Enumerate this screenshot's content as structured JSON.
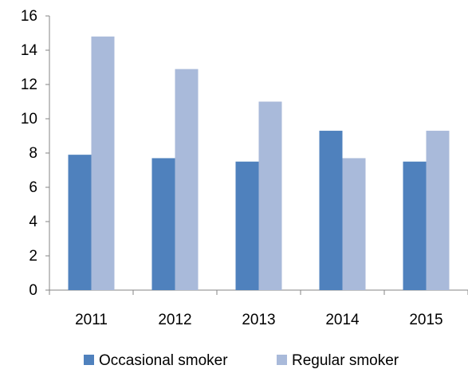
{
  "chart_data": {
    "type": "bar",
    "title": "",
    "xlabel": "",
    "ylabel": "",
    "categories": [
      "2011",
      "2012",
      "2013",
      "2014",
      "2015"
    ],
    "series": [
      {
        "name": "Occasional smoker",
        "color": "#4F81BD",
        "values": [
          7.9,
          7.7,
          7.5,
          9.3,
          7.5
        ]
      },
      {
        "name": "Regular smoker",
        "color": "#A9BADA",
        "values": [
          14.8,
          12.9,
          11.0,
          7.7,
          9.3
        ]
      }
    ],
    "ylim": [
      0,
      16
    ],
    "yticks": [
      "0",
      "2",
      "4",
      "6",
      "8",
      "10",
      "12",
      "14",
      "16"
    ],
    "grid": false,
    "legend": "bottom"
  }
}
